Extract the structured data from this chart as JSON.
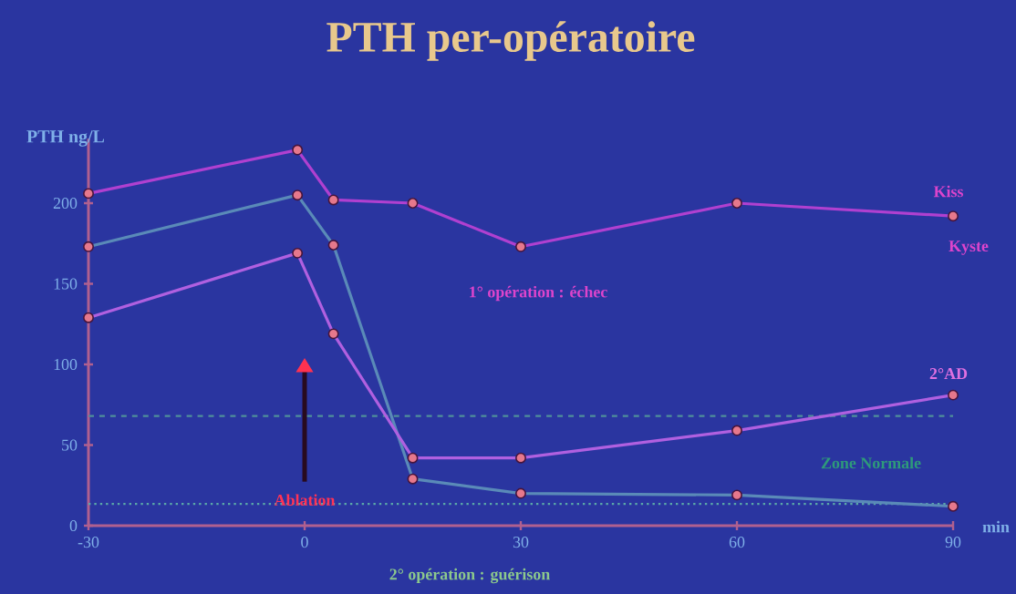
{
  "chart_data": {
    "type": "line",
    "title": "PTH per-opératoire",
    "ylabel": "PTH ng/L",
    "xlabel": "2° opération : guérison",
    "xlim": [
      -30,
      90
    ],
    "xticks": [
      -30,
      0,
      30,
      60,
      90
    ],
    "ylim": [
      0,
      240
    ],
    "yticks": [
      0,
      50,
      100,
      150,
      200
    ],
    "marker": "circle",
    "line_style": "solid",
    "grid": false,
    "series": [
      {
        "color": "#b040d0",
        "x": [
          -30,
          -1,
          4,
          15,
          30,
          60,
          90
        ],
        "values": [
          206,
          233,
          202,
          200,
          173,
          200,
          192
        ]
      },
      {
        "color": "#5a8ab8",
        "x": [
          -30,
          -1,
          4,
          15,
          30,
          60,
          90
        ],
        "values": [
          173,
          205,
          174,
          29,
          20,
          19,
          12
        ]
      },
      {
        "color": "#b060e0",
        "x": [
          -30,
          -1,
          4,
          15,
          30,
          60,
          90
        ],
        "values": [
          129,
          169,
          119,
          42,
          42,
          59,
          81
        ]
      }
    ],
    "ref_lines": [
      {
        "axis": "y",
        "value": 68,
        "color": "#4f8f9a",
        "line_style": "dashed"
      },
      {
        "axis": "y",
        "value": 13.5,
        "color": "#5aa8a8",
        "line_style": "dotted"
      }
    ],
    "annotations": [
      "Kiss",
      "Kyste",
      "2°AD",
      {
        "text": "Ablation",
        "x": 0,
        "y": 16
      },
      "1° opération : échec",
      "Zone Normale",
      "min"
    ]
  }
}
